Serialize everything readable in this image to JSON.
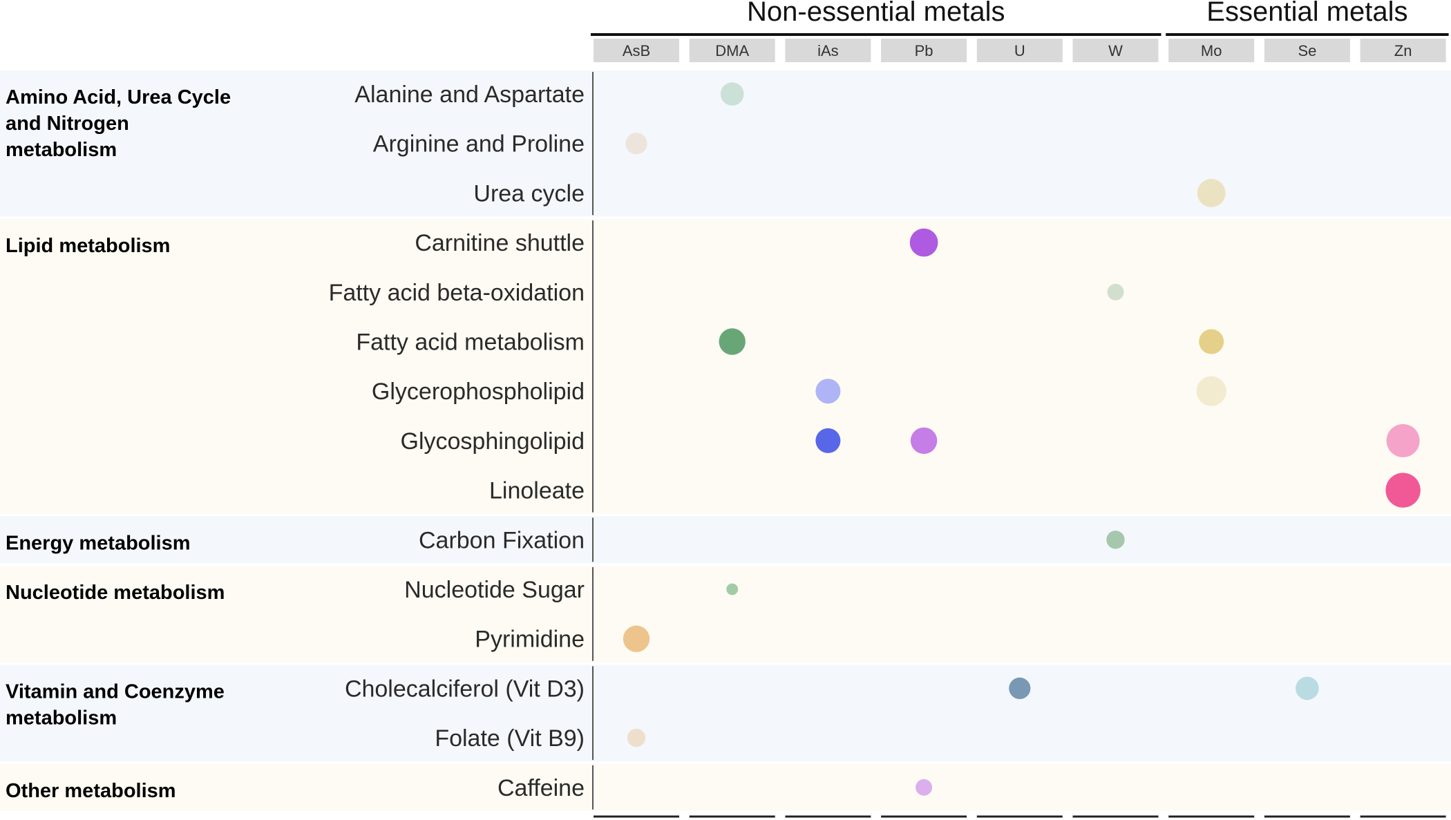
{
  "chart_data": {
    "type": "scatter",
    "column_groups": [
      {
        "title": "Non-essential metals",
        "columns": [
          "AsB",
          "DMA",
          "iAs",
          "Pb",
          "U",
          "W"
        ]
      },
      {
        "title": "Essential metals",
        "columns": [
          "Mo",
          "Se",
          "Zn"
        ]
      }
    ],
    "categories_x": [
      "AsB",
      "DMA",
      "iAs",
      "Pb",
      "U",
      "W",
      "Mo",
      "Se",
      "Zn"
    ],
    "row_groups": [
      {
        "title": "Amino Acid, Urea Cycle\nand Nitrogen\nmetabolism",
        "rows": [
          "Alanine and Aspartate",
          "Arginine and Proline",
          "Urea cycle"
        ]
      },
      {
        "title": "Lipid metabolism",
        "rows": [
          "Carnitine shuttle",
          "Fatty acid beta-oxidation",
          "Fatty acid metabolism",
          "Glycerophospholipid",
          "Glycosphingolipid",
          "Linoleate"
        ]
      },
      {
        "title": "Energy metabolism",
        "rows": [
          "Carbon Fixation"
        ]
      },
      {
        "title": "Nucleotide metabolism",
        "rows": [
          "Nucleotide Sugar",
          "Pyrimidine"
        ]
      },
      {
        "title": "Vitamin and Coenzyme\nmetabolism",
        "rows": [
          "Cholecalciferol (Vit D3)",
          "Folate (Vit B9)"
        ]
      },
      {
        "title": "Other metabolism",
        "rows": [
          "Caffeine"
        ]
      }
    ],
    "points": [
      {
        "row": "Alanine and Aspartate",
        "col": "DMA",
        "size": 0.7,
        "intensity": 0.3,
        "color": "#c7ddd2"
      },
      {
        "row": "Arginine and Proline",
        "col": "AsB",
        "size": 0.65,
        "intensity": 0.2,
        "color": "#ece3d8"
      },
      {
        "row": "Urea cycle",
        "col": "Mo",
        "size": 0.85,
        "intensity": 0.3,
        "color": "#e8dfbc"
      },
      {
        "row": "Carnitine shuttle",
        "col": "Pb",
        "size": 0.85,
        "intensity": 0.9,
        "color": "#a84de0"
      },
      {
        "row": "Fatty acid beta-oxidation",
        "col": "W",
        "size": 0.5,
        "intensity": 0.3,
        "color": "#cfdccb"
      },
      {
        "row": "Fatty acid metabolism",
        "col": "DMA",
        "size": 0.8,
        "intensity": 0.9,
        "color": "#5b9e6e"
      },
      {
        "row": "Fatty acid metabolism",
        "col": "Mo",
        "size": 0.75,
        "intensity": 0.6,
        "color": "#e3cc80"
      },
      {
        "row": "Glycerophospholipid",
        "col": "iAs",
        "size": 0.75,
        "intensity": 0.5,
        "color": "#a7aef5"
      },
      {
        "row": "Glycerophospholipid",
        "col": "Mo",
        "size": 0.9,
        "intensity": 0.2,
        "color": "#f1e9cd"
      },
      {
        "row": "Glycosphingolipid",
        "col": "iAs",
        "size": 0.75,
        "intensity": 0.95,
        "color": "#4a5ae6"
      },
      {
        "row": "Glycosphingolipid",
        "col": "Pb",
        "size": 0.8,
        "intensity": 0.7,
        "color": "#c173e6"
      },
      {
        "row": "Glycosphingolipid",
        "col": "Zn",
        "size": 1.0,
        "intensity": 0.5,
        "color": "#f59bc6"
      },
      {
        "row": "Linoleate",
        "col": "Zn",
        "size": 1.05,
        "intensity": 0.95,
        "color": "#f04a8e"
      },
      {
        "row": "Carbon Fixation",
        "col": "W",
        "size": 0.55,
        "intensity": 0.6,
        "color": "#9fc2a5"
      },
      {
        "row": "Nucleotide Sugar",
        "col": "DMA",
        "size": 0.35,
        "intensity": 0.6,
        "color": "#9ac7a0"
      },
      {
        "row": "Pyrimidine",
        "col": "AsB",
        "size": 0.8,
        "intensity": 0.6,
        "color": "#ecc083"
      },
      {
        "row": "Cholecalciferol (Vit D3)",
        "col": "U",
        "size": 0.65,
        "intensity": 0.8,
        "color": "#6e8fae"
      },
      {
        "row": "Cholecalciferol (Vit D3)",
        "col": "Se",
        "size": 0.7,
        "intensity": 0.4,
        "color": "#b2d9de"
      },
      {
        "row": "Folate (Vit B9)",
        "col": "AsB",
        "size": 0.55,
        "intensity": 0.2,
        "color": "#eddcc8"
      },
      {
        "row": "Caffeine",
        "col": "Pb",
        "size": 0.5,
        "intensity": 0.4,
        "color": "#d8a8ee"
      }
    ]
  }
}
